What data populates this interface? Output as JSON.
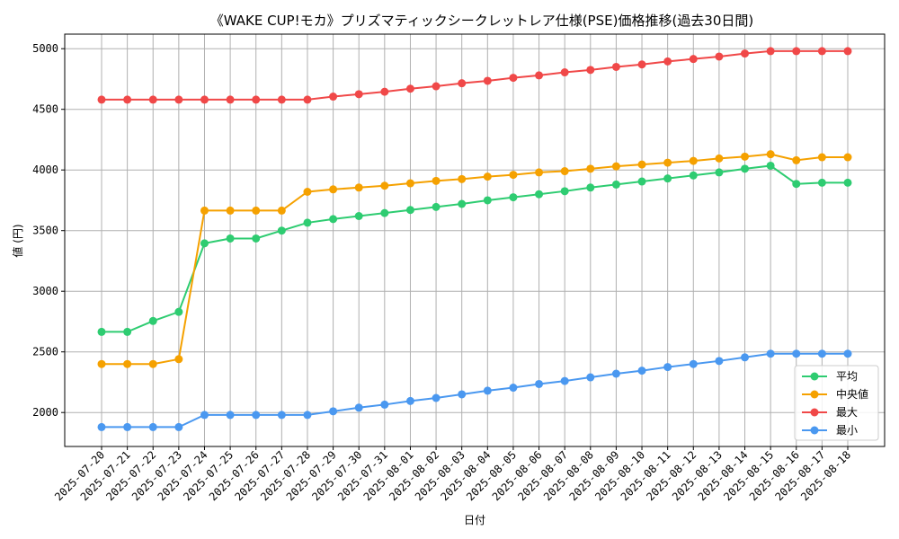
{
  "chart_data": {
    "type": "line",
    "title": "《WAKE CUP!モカ》プリズマティックシークレットレア仕様(PSE)価格推移(過去30日間)",
    "xlabel": "日付",
    "ylabel": "値 (円)",
    "ylim": [
      1720,
      5120
    ],
    "yticks": [
      2000,
      2500,
      3000,
      3500,
      4000,
      4500,
      5000
    ],
    "grid": true,
    "legend_position": "lower-right",
    "categories": [
      "2025-07-20",
      "2025-07-21",
      "2025-07-22",
      "2025-07-23",
      "2025-07-24",
      "2025-07-25",
      "2025-07-26",
      "2025-07-27",
      "2025-07-28",
      "2025-07-29",
      "2025-07-30",
      "2025-07-31",
      "2025-08-01",
      "2025-08-02",
      "2025-08-03",
      "2025-08-04",
      "2025-08-05",
      "2025-08-06",
      "2025-08-07",
      "2025-08-08",
      "2025-08-09",
      "2025-08-10",
      "2025-08-11",
      "2025-08-12",
      "2025-08-13",
      "2025-08-14",
      "2025-08-15",
      "2025-08-16",
      "2025-08-17",
      "2025-08-18"
    ],
    "series": [
      {
        "name": "平均",
        "color": "#2ecc71",
        "values": [
          2665,
          2665,
          2755,
          2830,
          3395,
          3435,
          3435,
          3500,
          3565,
          3595,
          3620,
          3645,
          3670,
          3695,
          3720,
          3750,
          3775,
          3800,
          3825,
          3855,
          3880,
          3905,
          3930,
          3955,
          3980,
          4010,
          4035,
          3885,
          3895,
          3895
        ]
      },
      {
        "name": "中央値",
        "color": "#f5a100",
        "values": [
          2400,
          2400,
          2400,
          2440,
          3665,
          3665,
          3665,
          3665,
          3820,
          3840,
          3855,
          3870,
          3890,
          3910,
          3925,
          3945,
          3960,
          3980,
          3990,
          4010,
          4030,
          4045,
          4060,
          4075,
          4095,
          4110,
          4130,
          4080,
          4105,
          4105
        ]
      },
      {
        "name": "最大",
        "color": "#f04848",
        "values": [
          4580,
          4580,
          4580,
          4580,
          4580,
          4580,
          4580,
          4580,
          4580,
          4605,
          4625,
          4645,
          4670,
          4690,
          4715,
          4735,
          4760,
          4780,
          4805,
          4825,
          4850,
          4870,
          4895,
          4915,
          4935,
          4960,
          4980,
          4980,
          4980,
          4980
        ]
      },
      {
        "name": "最小",
        "color": "#4a98f0",
        "values": [
          1880,
          1880,
          1880,
          1880,
          1980,
          1980,
          1980,
          1980,
          1980,
          2010,
          2040,
          2065,
          2095,
          2120,
          2150,
          2180,
          2205,
          2235,
          2260,
          2290,
          2320,
          2345,
          2375,
          2400,
          2425,
          2455,
          2485,
          2485,
          2485,
          2485
        ]
      }
    ]
  }
}
